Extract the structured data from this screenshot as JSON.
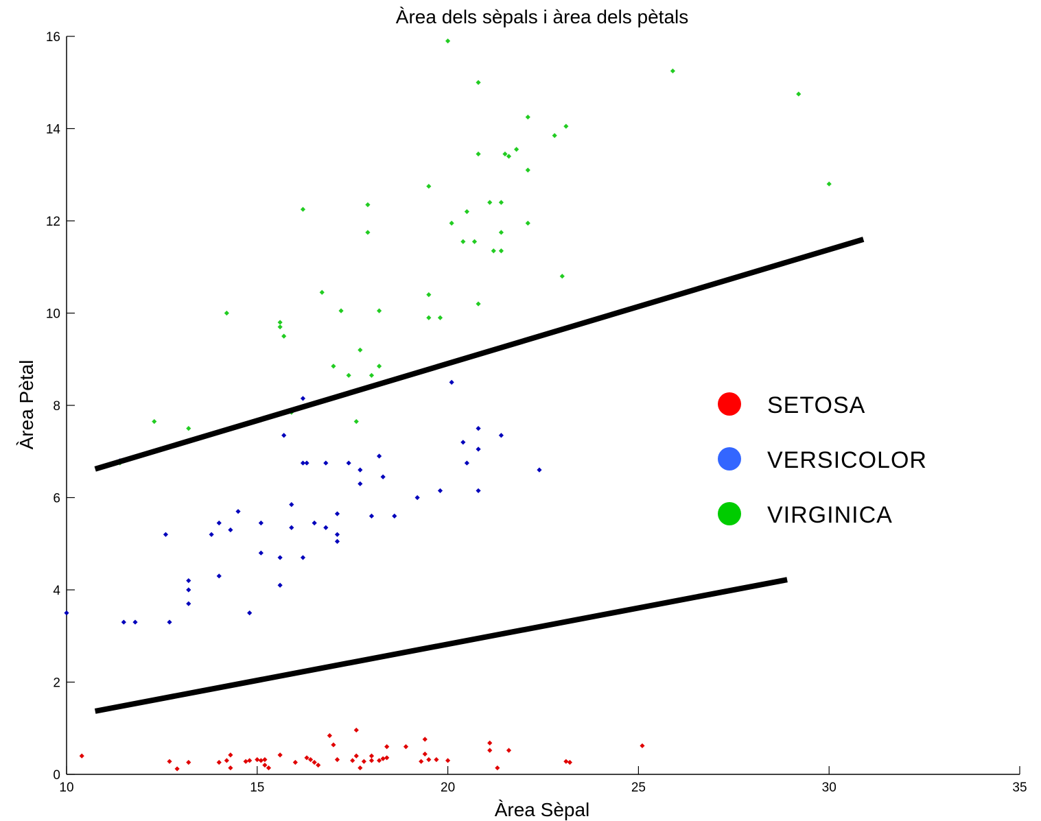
{
  "chart_data": {
    "type": "scatter",
    "title": "Àrea dels sèpals i àrea dels pètals",
    "xlabel": "Àrea Sèpal",
    "ylabel": "Àrea Pètal",
    "xlim": [
      10,
      35
    ],
    "ylim": [
      0,
      16
    ],
    "xticks": [
      10,
      15,
      20,
      25,
      30,
      35
    ],
    "yticks": [
      0,
      2,
      4,
      6,
      8,
      10,
      12,
      14,
      16
    ],
    "grid": false,
    "legend": {
      "placement": "right",
      "entries": [
        {
          "label": "SETOSA",
          "color": "#ff0000"
        },
        {
          "label": "VERSICOLOR",
          "color": "#3366ff"
        },
        {
          "label": "VIRGINICA",
          "color": "#00cc00"
        }
      ]
    },
    "series": [
      {
        "name": "SETOSA",
        "color": "#e00000",
        "points": [
          [
            10.4,
            0.4
          ],
          [
            12.7,
            0.28
          ],
          [
            12.9,
            0.12
          ],
          [
            13.2,
            0.26
          ],
          [
            14,
            0.26
          ],
          [
            14.2,
            0.3
          ],
          [
            14.3,
            0.42
          ],
          [
            14.3,
            0.14
          ],
          [
            14.7,
            0.28
          ],
          [
            14.8,
            0.3
          ],
          [
            15,
            0.32
          ],
          [
            15.1,
            0.3
          ],
          [
            15.2,
            0.32
          ],
          [
            15.2,
            0.2
          ],
          [
            15.3,
            0.14
          ],
          [
            15.6,
            0.42
          ],
          [
            16,
            0.26
          ],
          [
            16.3,
            0.36
          ],
          [
            16.4,
            0.32
          ],
          [
            16.5,
            0.26
          ],
          [
            16.6,
            0.2
          ],
          [
            16.9,
            0.84
          ],
          [
            17.0,
            0.64
          ],
          [
            17.1,
            0.32
          ],
          [
            17.5,
            0.3
          ],
          [
            17.6,
            0.96
          ],
          [
            17.6,
            0.4
          ],
          [
            17.7,
            0.14
          ],
          [
            17.8,
            0.28
          ],
          [
            18,
            0.4
          ],
          [
            18,
            0.3
          ],
          [
            18.2,
            0.3
          ],
          [
            18.3,
            0.34
          ],
          [
            18.4,
            0.6
          ],
          [
            18.4,
            0.36
          ],
          [
            18.9,
            0.6
          ],
          [
            19.3,
            0.28
          ],
          [
            19.4,
            0.76
          ],
          [
            19.4,
            0.44
          ],
          [
            19.5,
            0.32
          ],
          [
            19.7,
            0.32
          ],
          [
            20,
            0.3
          ],
          [
            21.1,
            0.68
          ],
          [
            21.1,
            0.52
          ],
          [
            21.3,
            0.14
          ],
          [
            21.6,
            0.52
          ],
          [
            23.1,
            0.28
          ],
          [
            23.2,
            0.26
          ],
          [
            25.1,
            0.62
          ]
        ]
      },
      {
        "name": "VERSICOLOR",
        "color": "#0000bb",
        "points": [
          [
            10,
            3.5
          ],
          [
            11.5,
            3.3
          ],
          [
            11.8,
            3.3
          ],
          [
            11.4,
            6.8
          ],
          [
            12.6,
            5.2
          ],
          [
            12.7,
            3.3
          ],
          [
            13.2,
            4.2
          ],
          [
            13.2,
            4.0
          ],
          [
            13.2,
            3.7
          ],
          [
            13.8,
            5.2
          ],
          [
            14.0,
            4.3
          ],
          [
            14.0,
            5.45
          ],
          [
            14.3,
            5.3
          ],
          [
            14.5,
            5.7
          ],
          [
            14.8,
            3.5
          ],
          [
            15.1,
            5.45
          ],
          [
            15.1,
            4.8
          ],
          [
            15.6,
            4.7
          ],
          [
            15.6,
            4.1
          ],
          [
            15.7,
            7.35
          ],
          [
            15.9,
            5.85
          ],
          [
            15.9,
            5.35
          ],
          [
            16.2,
            8.15
          ],
          [
            16.2,
            6.75
          ],
          [
            16.3,
            6.75
          ],
          [
            16.2,
            4.7
          ],
          [
            16.5,
            5.45
          ],
          [
            16.8,
            6.75
          ],
          [
            16.8,
            5.35
          ],
          [
            17.1,
            5.65
          ],
          [
            17.1,
            5.2
          ],
          [
            17.1,
            5.05
          ],
          [
            17.4,
            6.75
          ],
          [
            17.7,
            6.6
          ],
          [
            17.7,
            6.3
          ],
          [
            18.0,
            5.6
          ],
          [
            18.2,
            6.9
          ],
          [
            18.3,
            6.45
          ],
          [
            18.6,
            5.6
          ],
          [
            19.2,
            6.0
          ],
          [
            19.8,
            6.15
          ],
          [
            20.1,
            8.5
          ],
          [
            20.4,
            7.2
          ],
          [
            20.5,
            6.75
          ],
          [
            20.8,
            7.5
          ],
          [
            20.8,
            7.05
          ],
          [
            20.8,
            6.15
          ],
          [
            21.4,
            7.35
          ],
          [
            22.4,
            6.6
          ]
        ]
      },
      {
        "name": "VIRGINICA",
        "color": "#22cc22",
        "points": [
          [
            11.4,
            6.75
          ],
          [
            12.3,
            7.65
          ],
          [
            13.2,
            7.5
          ],
          [
            14.2,
            10.0
          ],
          [
            15.6,
            9.8
          ],
          [
            15.6,
            9.7
          ],
          [
            15.7,
            9.5
          ],
          [
            15.9,
            7.85
          ],
          [
            16.2,
            12.25
          ],
          [
            16.7,
            10.45
          ],
          [
            17.0,
            8.85
          ],
          [
            17.2,
            10.05
          ],
          [
            17.4,
            8.65
          ],
          [
            17.6,
            7.65
          ],
          [
            17.7,
            9.2
          ],
          [
            17.9,
            12.35
          ],
          [
            17.9,
            11.75
          ],
          [
            18.0,
            8.65
          ],
          [
            18.2,
            10.05
          ],
          [
            18.2,
            8.85
          ],
          [
            19.5,
            12.75
          ],
          [
            19.5,
            10.4
          ],
          [
            19.5,
            9.9
          ],
          [
            19.8,
            9.9
          ],
          [
            20.0,
            15.9
          ],
          [
            20.1,
            11.95
          ],
          [
            20.4,
            11.55
          ],
          [
            20.5,
            12.2
          ],
          [
            20.7,
            11.55
          ],
          [
            20.8,
            15.0
          ],
          [
            20.8,
            13.45
          ],
          [
            20.8,
            10.2
          ],
          [
            21.1,
            12.4
          ],
          [
            21.2,
            11.35
          ],
          [
            21.4,
            12.4
          ],
          [
            21.4,
            11.35
          ],
          [
            21.4,
            11.75
          ],
          [
            21.5,
            13.45
          ],
          [
            21.6,
            13.4
          ],
          [
            21.8,
            13.55
          ],
          [
            22.1,
            14.25
          ],
          [
            22.1,
            13.1
          ],
          [
            22.1,
            11.95
          ],
          [
            22.8,
            13.85
          ],
          [
            23.0,
            10.8
          ],
          [
            23.1,
            14.05
          ],
          [
            25.9,
            15.25
          ],
          [
            29.2,
            14.75
          ],
          [
            30.0,
            12.8
          ]
        ]
      }
    ],
    "lines": [
      {
        "from": [
          10.75,
          6.62
        ],
        "to": [
          30.9,
          11.6
        ]
      },
      {
        "from": [
          10.75,
          1.37
        ],
        "to": [
          28.9,
          4.22
        ]
      }
    ]
  }
}
